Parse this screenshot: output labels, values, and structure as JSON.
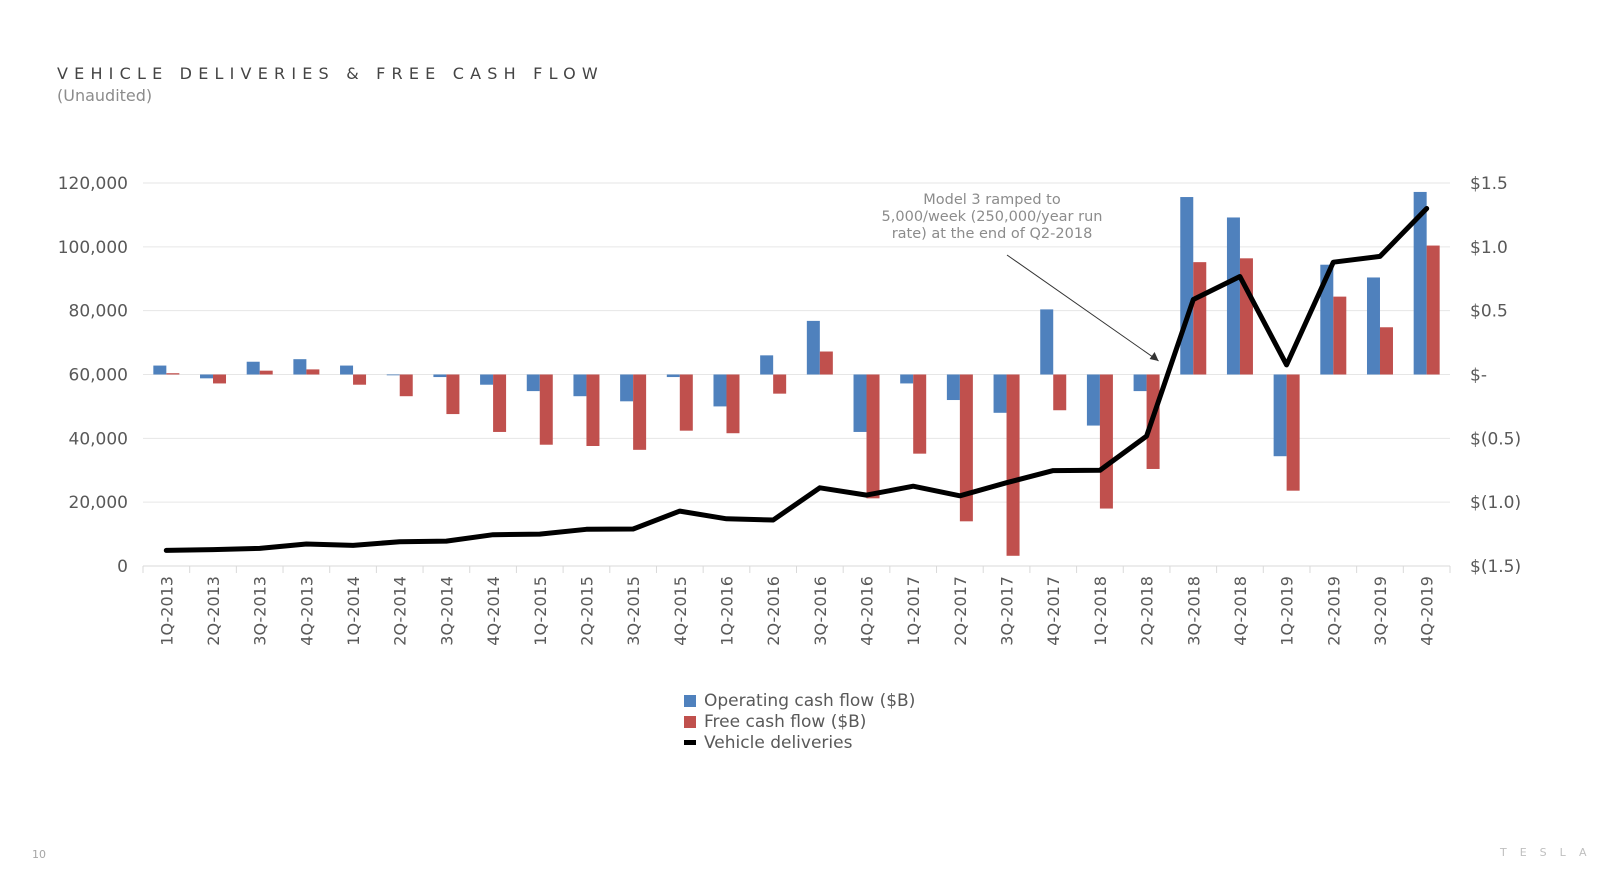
{
  "header": {
    "title": "VEHICLE DELIVERIES & FREE CASH FLOW",
    "subtitle": "(Unaudited)"
  },
  "colors": {
    "operating": "#4f81bd",
    "free": "#c0504d",
    "deliveries": "#000000",
    "grid": "#e6e6e6",
    "text": "#595959"
  },
  "chart_data": {
    "type": "bar",
    "title": "VEHICLE DELIVERIES & FREE CASH FLOW",
    "subtitle": "(Unaudited)",
    "categories": [
      "1Q-2013",
      "2Q-2013",
      "3Q-2013",
      "4Q-2013",
      "1Q-2014",
      "2Q-2014",
      "3Q-2014",
      "4Q-2014",
      "1Q-2015",
      "2Q-2015",
      "3Q-2015",
      "4Q-2015",
      "1Q-2016",
      "2Q-2016",
      "3Q-2016",
      "4Q-2016",
      "1Q-2017",
      "2Q-2017",
      "3Q-2017",
      "4Q-2017",
      "1Q-2018",
      "2Q-2018",
      "3Q-2018",
      "4Q-2018",
      "1Q-2019",
      "2Q-2019",
      "3Q-2019",
      "4Q-2019"
    ],
    "left_axis": {
      "ticks": [
        "0",
        "20,000",
        "40,000",
        "60,000",
        "80,000",
        "100,000",
        "120,000"
      ],
      "ylim": [
        0,
        120000
      ]
    },
    "right_axis": {
      "ticks": [
        "$(1.5)",
        "$(1.0)",
        "$(0.5)",
        "$-",
        "$0.5",
        "$1.0",
        "$1.5"
      ],
      "ylim": [
        -1.5,
        1.5
      ]
    },
    "grid": true,
    "legend_position": "bottom-center",
    "series": [
      {
        "name": "Operating cash flow ($B)",
        "type": "bar",
        "axis": "right",
        "values": [
          0.07,
          -0.03,
          0.1,
          0.12,
          0.07,
          0.0,
          -0.02,
          -0.08,
          -0.13,
          -0.17,
          -0.21,
          -0.02,
          -0.25,
          0.15,
          0.42,
          -0.45,
          -0.07,
          -0.2,
          -0.3,
          0.51,
          -0.4,
          -0.13,
          1.39,
          1.23,
          -0.64,
          0.86,
          0.76,
          1.43
        ]
      },
      {
        "name": "Free cash flow ($B)",
        "type": "bar",
        "axis": "right",
        "values": [
          0.01,
          -0.07,
          0.03,
          0.04,
          -0.08,
          -0.17,
          -0.31,
          -0.45,
          -0.55,
          -0.56,
          -0.59,
          -0.44,
          -0.46,
          -0.15,
          0.18,
          -0.97,
          -0.62,
          -1.15,
          -1.42,
          -0.28,
          -1.05,
          -0.74,
          0.88,
          0.91,
          -0.91,
          0.61,
          0.37,
          1.01
        ]
      },
      {
        "name": "Vehicle deliveries",
        "type": "line",
        "axis": "left",
        "values": [
          4900,
          5150,
          5500,
          6900,
          6450,
          7600,
          7800,
          9800,
          10000,
          11500,
          11600,
          17200,
          14800,
          14400,
          24500,
          22200,
          25000,
          22000,
          26100,
          29900,
          29980,
          40700,
          83500,
          90700,
          63000,
          95200,
          97000,
          112000
        ]
      }
    ],
    "annotations": [
      {
        "text": [
          "Model 3 ramped to",
          "5,000/week (250,000/year run",
          "rate) at the end of Q2-2018"
        ],
        "points_to": "2Q-2018"
      }
    ]
  },
  "legend": {
    "operating_label": "Operating cash flow ($B)",
    "free_label": "Free cash flow ($B)",
    "deliveries_label": "Vehicle deliveries"
  },
  "footer": {
    "page_number": "10",
    "logo_text": "TESLA"
  }
}
